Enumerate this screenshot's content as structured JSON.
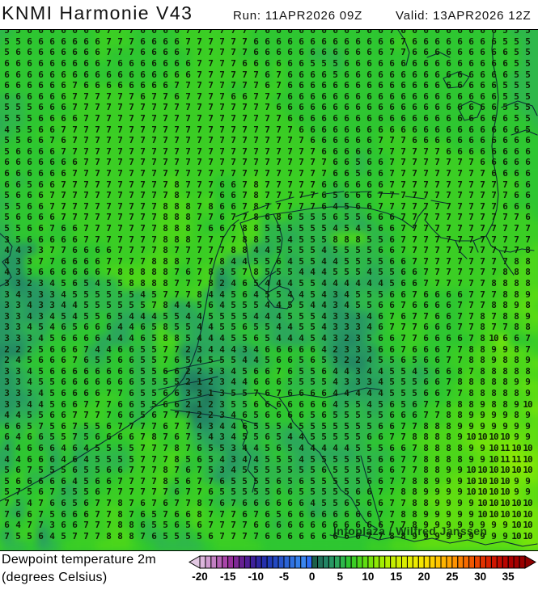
{
  "header": {
    "title": "KNMI Harmonie V43",
    "run": "Run: 11APR2026 09Z",
    "valid": "Valid: 13APR2026 12Z"
  },
  "legend": {
    "line1": "Dewpoint temperature 2m",
    "line2": "(degrees Celsius)",
    "tick_labels": [
      "-20",
      "-15",
      "-10",
      "-5",
      "0",
      "5",
      "10",
      "15",
      "20",
      "25",
      "30",
      "35"
    ]
  },
  "watermark": {
    "text": "Infoplaza / Wilfred Janssen"
  },
  "colors": {
    "map_base_green": "#2ec631",
    "number_text": "#0d2405",
    "coastline": "#0b2a33",
    "page_bg": "#ffffff",
    "colorbar_left_arrow": "#e2c8e2",
    "colorbar_right_arrow": "#8f0000"
  },
  "chart_data": {
    "type": "heatmap",
    "title": "Dewpoint temperature 2m (degrees Celsius)",
    "model": "KNMI Harmonie V43",
    "run": "11APR2026 09Z",
    "valid": "13APR2026 12Z",
    "unit": "degrees Celsius",
    "grid_cols": 48,
    "grid_rows": 47,
    "values": [
      "5 5 5 6 6 6 6 6 6 6 7 7 7 6 6 6 6 7 7 7 7 7 7 7 6 6 6 6 6 6 6 6 5 6 6 7 6 6 6 6 6 6 6 6 6 5 5 5",
      "5 5 5 6 6 6 6 6 6 6 7 7 7 6 6 6 6 7 7 7 7 7 7 6 6 6 6 6 6 6 6 6 6 6 6 6 7 6 6 6 6 6 6 6 6 5 5 5",
      "5 5 6 6 6 6 6 6 6 6 7 7 7 6 6 6 6 7 7 7 7 7 7 6 6 6 6 6 6 6 6 6 6 6 6 7 7 6 6 6 6 6 6 6 6 6 5 5",
      "6 6 6 6 6 6 6 6 6 6 7 6 6 6 6 6 6 6 7 7 7 7 6 6 6 6 6 6 5 5 5 6 6 6 6 6 6 6 6 6 6 6 6 6 6 6 5 5",
      "5 6 6 6 6 6 6 6 6 6 6 6 6 6 6 6 6 6 7 7 7 7 7 7 6 7 6 6 6 6 5 6 6 6 6 6 6 6 6 6 6 6 6 6 6 6 5 5",
      "5 6 6 6 6 6 6 7 6 6 6 6 6 6 6 6 7 7 7 7 7 7 7 7 6 7 6 6 6 6 6 6 6 6 6 6 6 6 6 6 6 6 6 6 6 5 5 5",
      "6 6 6 6 6 6 6 7 7 7 7 7 7 6 7 7 6 7 7 7 7 6 6 7 7 7 6 6 6 6 6 6 6 6 6 6 6 6 6 6 6 6 6 6 6 5 5 5",
      "5 5 5 5 6 6 6 7 7 7 7 7 7 7 7 7 7 7 7 7 7 7 7 7 7 6 6 6 6 6 6 6 6 6 6 6 6 6 6 6 6 6 6 6 6 5 5 5",
      "5 5 5 5 6 6 6 6 7 7 7 7 7 7 7 7 7 7 7 7 7 7 7 7 7 7 6 6 6 6 6 6 6 6 6 6 6 6 6 6 6 6 6 6 6 6 5 5",
      "4 4 5 5 6 6 7 7 7 7 7 7 7 7 7 7 7 7 7 7 7 7 7 7 7 7 7 6 6 6 6 6 6 6 6 6 6 6 6 6 6 6 6 6 6 6 6 5",
      "5 5 5 6 6 7 6 7 7 7 7 7 7 7 7 7 7 7 7 7 7 7 7 7 7 7 7 7 6 6 6 6 6 6 7 7 7 6 6 6 6 6 6 6 6 6 6 6",
      "5 5 6 6 6 6 7 7 7 7 7 7 7 7 7 7 7 7 7 7 7 7 7 7 7 7 7 7 7 6 6 6 6 6 7 7 7 7 7 7 6 6 6 6 6 6 6 6",
      "6 6 6 6 6 6 6 6 7 7 7 7 7 7 7 7 7 7 7 7 7 7 7 7 7 7 7 7 7 7 6 6 5 6 6 7 7 7 7 7 7 7 7 6 6 6 6 6",
      "5 6 6 6 6 6 6 7 7 7 7 7 7 7 7 7 7 7 7 7 7 7 7 7 7 7 7 7 7 7 6 6 5 6 6 7 7 7 7 7 7 7 7 7 6 6 6 6",
      "5 6 6 5 6 6 7 7 7 7 7 7 7 7 7 7 8 7 7 7 6 6 7 8 7 7 7 7 7 6 6 6 6 6 6 7 7 7 7 7 7 7 7 7 7 7 6 6",
      "5 5 6 6 6 7 7 7 7 7 7 7 7 7 7 7 8 7 7 7 6 6 7 8 7 7 7 7 7 6 5 6 6 6 7 7 7 7 7 7 7 7 7 7 7 7 6 6",
      "5 5 5 6 6 7 7 7 7 7 7 7 7 7 7 8 8 8 7 8 6 6 7 8 7 7 7 7 7 6 4 5 6 6 7 7 7 7 7 7 7 7 7 7 7 6 6 6",
      "5 5 6 6 6 6 7 7 7 7 7 7 7 7 7 8 8 8 7 7 6 7 7 8 6 8 6 5 5 5 6 5 5 6 6 6 7 7 7 7 7 7 7 7 7 7 7 6",
      "4 5 5 6 6 7 6 6 7 7 7 7 7 7 7 8 8 8 7 6 6 7 8 8 5 5 5 5 5 5 4 5 4 5 6 6 7 7 7 7 7 7 7 7 7 7 7 7",
      "4 3 5 6 6 6 6 6 7 7 7 7 7 7 7 8 8 8 7 7 7 7 8 8 5 5 4 5 5 5 8 8 8 5 5 6 7 7 7 7 7 7 7 7 7 7 7 7",
      "5 4 4 3 3 7 7 6 6 6 6 7 7 7 7 8 7 7 7 7 7 8 8 4 4 5 5 5 5 4 5 5 5 5 6 6 7 7 7 7 7 7 7 7 7 7 7 8",
      "4 4 3 3 7 7 6 6 6 6 7 7 7 7 8 8 8 7 7 7 8 4 4 5 5 6 4 5 5 4 4 5 5 5 5 6 6 7 7 7 7 7 7 7 7 7 8 8",
      "5 4 3 3 6 6 6 6 6 6 7 8 8 8 8 8 7 6 7 8 3 5 7 8 5 5 5 4 4 4 5 5 5 4 5 5 6 6 7 7 7 7 7 7 7 8 8 8",
      "3 3 3 2 3 4 5 6 5 4 5 5 8 8 8 8 7 7 7 8 2 4 6 5 4 4 4 5 5 4 4 4 4 4 4 5 6 6 7 7 7 7 7 7 8 8 8 8",
      "3 3 4 3 3 3 4 5 5 5 5 5 5 4 5 7 7 7 8 4 4 5 6 4 5 5 4 4 5 4 3 4 5 5 5 6 6 7 6 6 6 6 7 7 7 8 8 9",
      "3 3 3 4 3 3 4 4 5 5 5 5 5 5 7 8 4 4 5 6 4 5 5 5 4 4 5 5 4 4 3 4 5 5 6 6 7 6 6 6 6 7 7 7 8 8 9 8",
      "3 3 3 4 3 4 5 4 5 5 6 5 4 4 4 5 5 4 4 5 5 5 5 4 4 4 5 5 5 4 3 3 3 4 6 7 6 7 7 6 6 7 7 8 7 8 8 9",
      "3 3 3 4 5 4 6 5 6 6 6 4 4 6 5 8 5 5 4 4 5 5 6 5 5 4 4 5 5 4 3 3 3 4 6 7 7 7 6 6 6 7 7 8 7 7 8 8",
      "3 3 3 3 4 5 6 6 6 6 4 4 4 6 5 8 8 5 4 4 4 5 5 6 5 4 4 4 5 4 3 2 3 5 6 6 7 7 6 6 6 6 7 8 10 6 6 7",
      "3 2 2 2 5 6 6 6 7 4 4 6 6 5 5 7 7 2 3 4 4 4 3 4 6 6 6 6 6 4 2 3 3 3 6 6 7 6 6 6 7 7 8 8 9 9 8 7",
      "2 2 4 5 6 6 6 7 6 5 5 6 6 5 5 7 6 5 4 5 5 5 4 4 5 6 6 5 6 5 3 2 2 4 5 5 6 5 6 6 7 7 8 8 9 8 8 9",
      "3 3 3 4 5 6 6 6 6 6 6 6 6 5 5 6 6 2 2 3 3 4 5 6 6 7 6 5 5 6 4 4 3 4 4 5 5 4 5 6 6 8 7 8 8 8 8 8",
      "3 3 3 4 5 5 6 6 6 6 6 6 6 5 5 5 5 2 1 2 3 4 4 6 6 6 5 5 5 5 4 3 3 3 4 5 5 5 6 6 7 8 8 8 8 8 9 9",
      "3 3 3 3 4 5 6 6 6 6 7 7 6 5 5 6 6 3 3 1 3 5 5 7 6 7 6 6 6 6 4 4 4 4 4 5 5 5 6 6 7 7 8 8 8 8 8 9",
      "3 3 3 4 4 5 6 6 7 7 7 6 6 5 5 6 6 2 1 2 3 5 5 6 6 6 6 6 6 6 4 5 5 4 5 6 5 6 7 7 8 8 8 9 8 8 9 10",
      "3 4 4 5 5 6 6 7 7 7 7 6 6 5 6 7 7 7 2 2 3 4 6 5 6 6 6 6 5 6 5 5 5 5 5 6 6 6 7 7 8 8 9 9 9 9 8 9",
      "6 6 6 5 7 5 6 7 5 5 6 7 7 7 7 6 7 7 4 3 4 4 6 5 5 5 4 5 5 5 5 5 5 5 6 6 7 7 8 8 8 9 9 9 9 9 9 9",
      "6 6 4 6 6 5 5 7 5 6 6 6 6 7 8 7 6 7 5 4 3 4 5 5 6 5 4 4 5 5 5 5 5 6 6 7 7 8 8 8 8 9 10 10 10 10 9 9",
      "5 4 4 6 6 6 4 6 4 5 5 5 5 7 7 7 8 7 6 5 5 3 4 4 5 6 5 4 4 4 4 4 5 5 5 6 6 7 8 8 8 8 9 9 10 11 10 10",
      "4 4 4 6 6 6 4 6 4 5 5 5 5 7 7 7 8 5 6 5 4 3 4 4 5 5 5 4 5 5 5 5 5 5 6 6 7 7 8 8 8 8 9 9 10 11 11 10",
      "5 5 6 7 5 5 5 6 5 5 6 6 7 7 7 8 7 6 7 5 3 4 5 5 5 5 5 5 5 6 5 5 5 5 6 6 7 7 8 8 9 9 10 10 10 10 10 10",
      "4 5 6 6 6 6 6 4 5 6 6 7 7 7 7 8 5 6 7 7 6 5 5 5 5 6 5 6 5 5 5 5 5 6 6 7 7 8 8 9 9 9 10 10 10 10 9 9",
      "5 5 7 5 6 7 5 5 5 6 7 7 7 7 7 7 6 7 7 6 5 5 5 5 5 6 6 5 5 5 5 5 6 6 7 7 8 8 9 9 9 9 10 10 10 10 9 9",
      "5 7 5 4 7 6 6 5 6 7 7 8 7 6 7 6 7 7 8 7 6 7 6 6 6 6 6 6 4 5 5 6 5 6 6 7 7 8 8 9 9 9 9 10 10 10 10 10",
      "6 7 6 6 7 5 6 6 6 7 7 8 7 6 5 7 6 6 8 7 7 7 6 7 6 5 6 6 6 6 6 6 6 6 7 7 8 8 9 9 9 9 9 10 10 10 10 10",
      "6 6 4 7 7 3 6 6 7 7 7 8 8 6 5 5 6 5 6 7 7 7 7 6 6 6 6 6 6 6 6 6 6 6 6 7 7 8 9 9 9 9 9 9 9 9 10 10",
      "5 7 5 5 6 4 5 7 7 7 8 8 8 7 6 5 5 5 5 6 7 7 7 7 6 6 6 6 6 6 6 6 6 7 7 8 8 9 9 9 9 9 9 9 9 9 10 10"
    ],
    "colorbar": {
      "value_min": -20,
      "label_max": 35,
      "cells_max": 37,
      "tick_step": 5,
      "colors": [
        "#dcb6dc",
        "#d09cd0",
        "#c280c2",
        "#b562b5",
        "#a945a9",
        "#97309b",
        "#7f2896",
        "#672092",
        "#511e95",
        "#3e219b",
        "#2e26a2",
        "#2530ac",
        "#203cb8",
        "#2349c2",
        "#2756cc",
        "#2b64d6",
        "#2f72e0",
        "#3480ea",
        "#3a86f0",
        "#2e6ff5",
        "#1d6049",
        "#20735a",
        "#238565",
        "#279763",
        "#2ba75c",
        "#2eb74b",
        "#2ec631",
        "#3bce24",
        "#4cd61a",
        "#60dd11",
        "#77e40a",
        "#8ee905",
        "#a3ed02",
        "#b5ee00",
        "#c4ee00",
        "#cfee00",
        "#daed00",
        "#e4ec00",
        "#edeb00",
        "#f4e500",
        "#f9dc00",
        "#fdd000",
        "#ffc300",
        "#ffb400",
        "#ffa400",
        "#fe9200",
        "#fb7f00",
        "#f76b00",
        "#f15700",
        "#ea4400",
        "#e23200",
        "#d92300",
        "#cf1600",
        "#c40c00",
        "#b90500",
        "#ad0100",
        "#a30000",
        "#9a0000"
      ]
    }
  }
}
